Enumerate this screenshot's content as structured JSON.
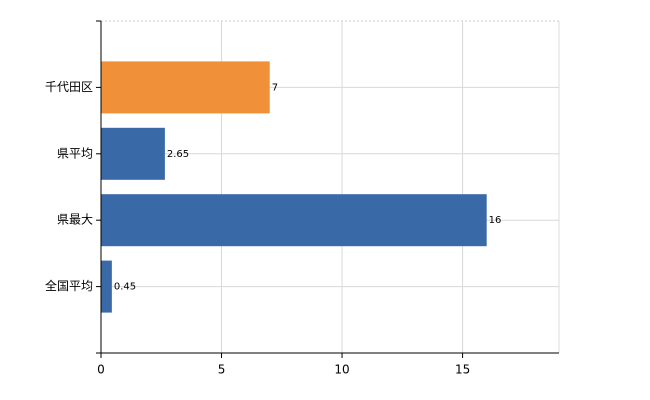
{
  "chart_data": {
    "type": "hbar",
    "categories": [
      "千代田区",
      "県平均",
      "県最大",
      "全国平均"
    ],
    "values": [
      7,
      2.65,
      16,
      0.45
    ],
    "colors": [
      "#f0913a",
      "#3a69a8",
      "#3a69a8",
      "#3a69a8"
    ],
    "xlim": [
      0,
      19
    ],
    "xticks": [
      0,
      5,
      10,
      15
    ],
    "grid": true
  }
}
